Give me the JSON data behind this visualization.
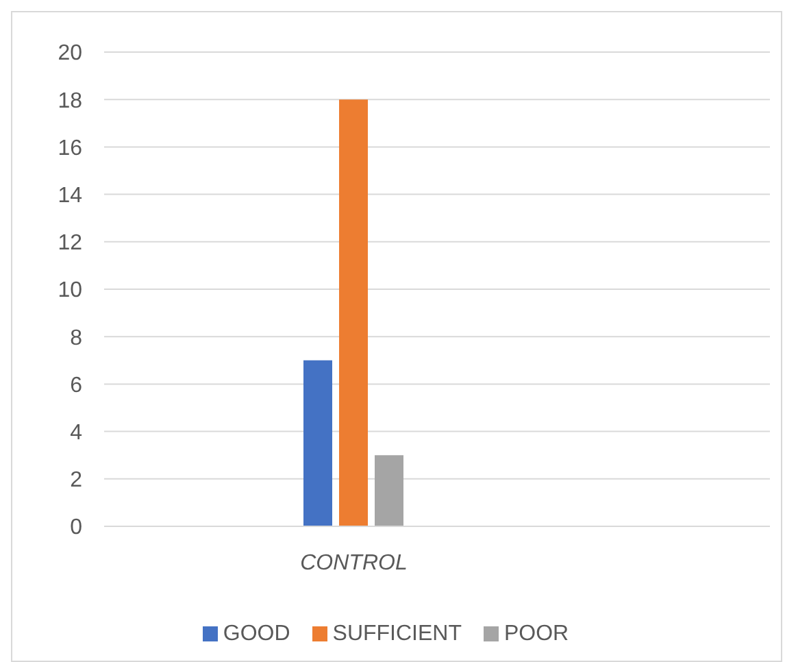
{
  "chart_data": {
    "type": "bar",
    "categories": [
      null,
      "CONTROL",
      null,
      null
    ],
    "series": [
      {
        "name": "GOOD",
        "color": "#4472c4",
        "values": [
          null,
          7,
          null,
          null
        ]
      },
      {
        "name": "SUFFICIENT",
        "color": "#ed7d31",
        "values": [
          null,
          18,
          null,
          null
        ]
      },
      {
        "name": "POOR",
        "color": "#a5a5a5",
        "values": [
          null,
          3,
          null,
          null
        ]
      }
    ],
    "ylim": [
      0,
      20
    ],
    "yticks": [
      0,
      2,
      4,
      6,
      8,
      10,
      12,
      14,
      16,
      18,
      20
    ],
    "grid": "y",
    "legend": "bottom"
  }
}
